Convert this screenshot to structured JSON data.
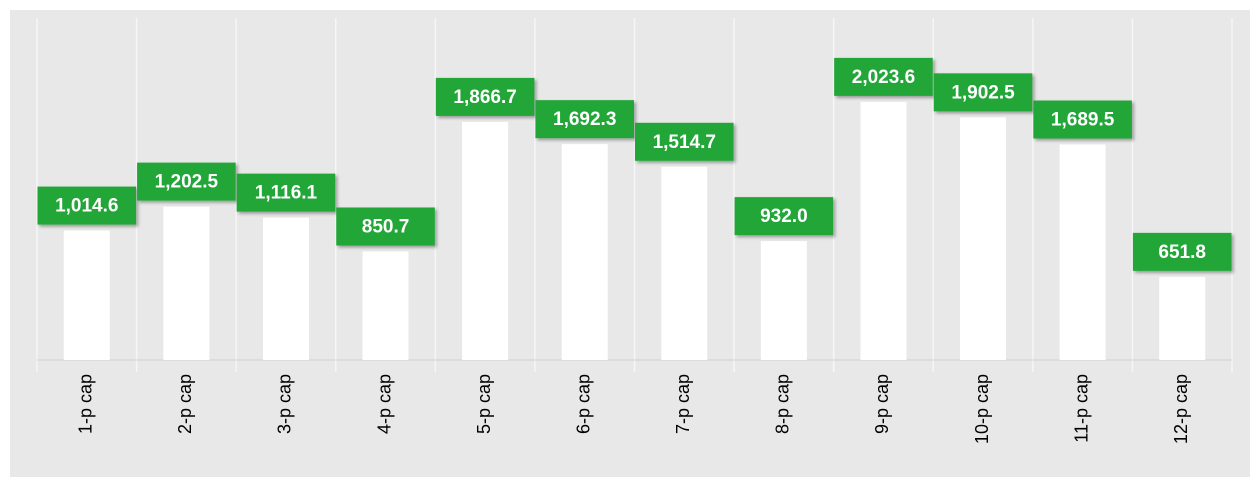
{
  "chart_data": {
    "type": "bar",
    "categories": [
      "1-p cap",
      "2-p cap",
      "3-p cap",
      "4-p cap",
      "5-p cap",
      "6-p cap",
      "7-p cap",
      "8-p cap",
      "9-p cap",
      "10-p cap",
      "11-p cap",
      "12-p cap"
    ],
    "values": [
      1014.6,
      1202.5,
      1116.1,
      850.7,
      1866.7,
      1692.3,
      1514.7,
      932.0,
      2023.6,
      1902.5,
      1689.5,
      651.8
    ],
    "value_labels": [
      "1,014.6",
      "1,202.5",
      "1,116.1",
      "850.7",
      "1,866.7",
      "1,692.3",
      "1,514.7",
      "932.0",
      "2,023.6",
      "1,902.5",
      "1,689.5",
      "651.8"
    ],
    "color": "#ffffff",
    "label_color": "#21a637",
    "ylim": [
      0,
      2650
    ]
  }
}
